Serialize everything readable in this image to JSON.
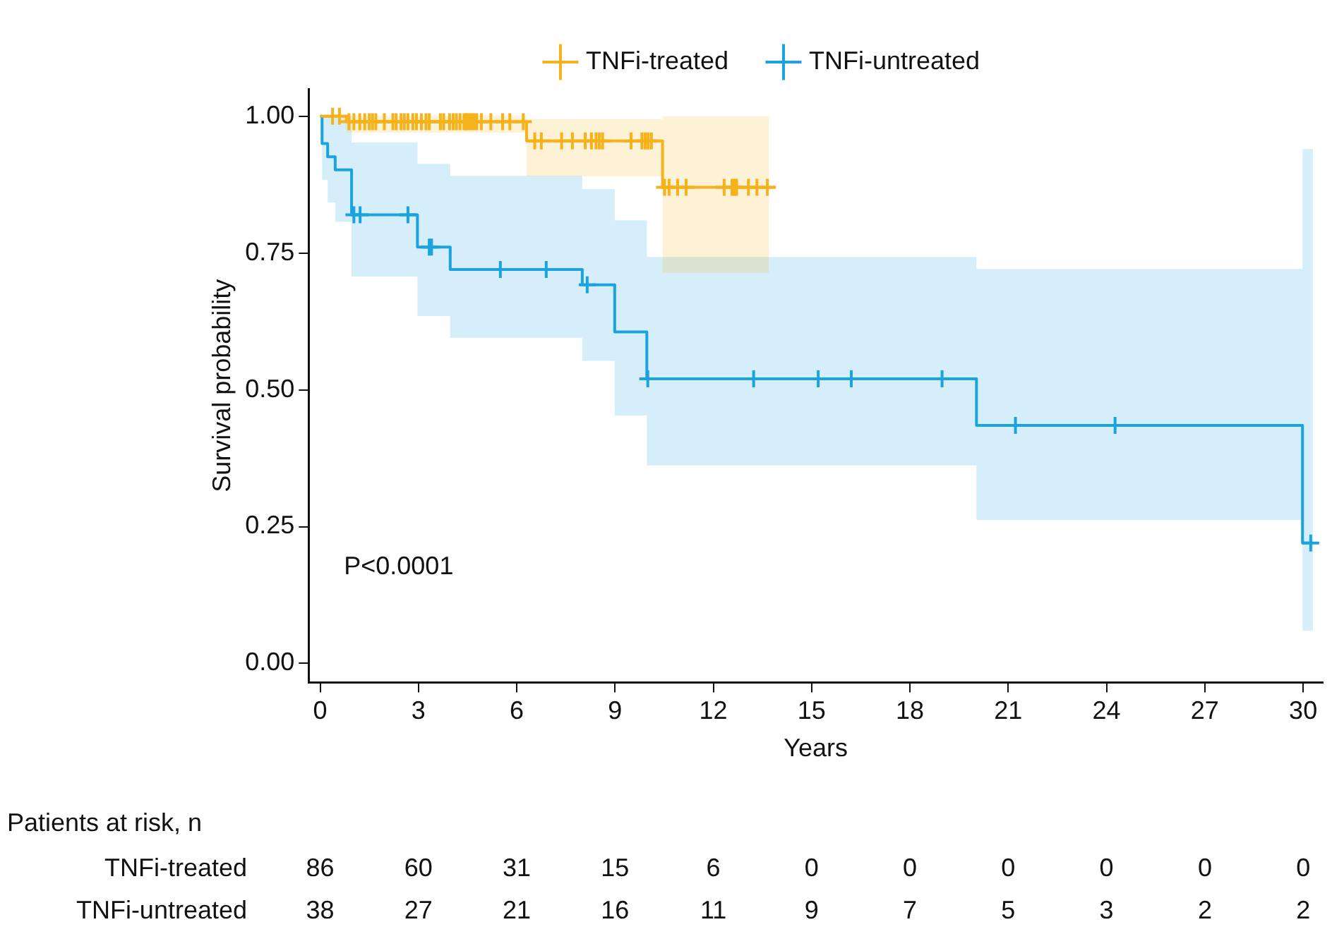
{
  "chart_data": {
    "type": "step",
    "xlabel": "Years",
    "ylabel": "Survival probability",
    "legend": "top",
    "xlim": [
      -0.35,
      30.6
    ],
    "xticks": [
      0,
      3,
      6,
      9,
      12,
      15,
      18,
      21,
      24,
      27,
      30
    ],
    "ylim": [
      -0.035,
      1.05
    ],
    "yticks": [
      {
        "value": 0,
        "label": "0.00"
      },
      {
        "value": 0.25,
        "label": "0.25"
      },
      {
        "value": 0.5,
        "label": "0.50"
      },
      {
        "value": 0.75,
        "label": "0.75"
      },
      {
        "value": 1,
        "label": "1.00"
      }
    ],
    "annotations": [
      "P<0.0001",
      "Patients at risk, n",
      "TNFi-treated",
      "86",
      "60",
      "31",
      "15",
      "6",
      "0",
      "0",
      "0",
      "0",
      "0",
      "0",
      "TNFi-untreated",
      "38",
      "27",
      "21",
      "16",
      "11",
      "9",
      "7",
      "5",
      "3",
      "2",
      "2"
    ],
    "series": [
      {
        "name": "TNFi-treated",
        "color": "#f5b21b",
        "x": [
          0,
          0.8,
          6.3,
          10.45,
          13.7,
          13.9
        ],
        "values": [
          1,
          0.99,
          0.955,
          0.87,
          0.87,
          0.87
        ],
        "lower": [
          1,
          0.97,
          0.89,
          0.714,
          0.714,
          null
        ],
        "upper": [
          1,
          1,
          0.995,
          1,
          1,
          null
        ]
      },
      {
        "name": "TNFi-untreated",
        "color": "#1ba3de",
        "x": [
          0,
          0.06,
          0.23,
          0.46,
          0.96,
          2.97,
          3.97,
          8.0,
          8.99,
          9.97,
          20.03,
          29.98,
          30.3
        ],
        "values": [
          1,
          0.95,
          0.926,
          0.902,
          0.82,
          0.761,
          0.72,
          0.692,
          0.606,
          0.52,
          0.435,
          0.22,
          0.22
        ],
        "lower": [
          1,
          0.884,
          0.842,
          0.807,
          0.707,
          0.635,
          0.595,
          0.553,
          0.453,
          0.362,
          0.262,
          0.06,
          0.06
        ],
        "upper": [
          1,
          1,
          1,
          1,
          0.952,
          0.913,
          0.891,
          0.867,
          0.81,
          0.743,
          0.721,
          0.94,
          0.94
        ]
      },
      {
        "type": "scatter",
        "marker": "cross",
        "color": "#f5b21b",
        "x": [
          0.38,
          0.59,
          0.88,
          1.03,
          1.21,
          1.36,
          1.5,
          1.6,
          1.7,
          1.96,
          2.22,
          2.32,
          2.47,
          2.57,
          2.68,
          2.83,
          2.94,
          3.09,
          3.23,
          3.33,
          3.67,
          3.77,
          3.95,
          4.06,
          4.16,
          4.27,
          4.39,
          4.45,
          4.49,
          4.56,
          4.63,
          4.7,
          4.78,
          4.92,
          5.21,
          5.57,
          5.79,
          6.2,
          6.55,
          6.75,
          7.37,
          7.7,
          8.09,
          8.28,
          8.42,
          8.52,
          8.62,
          9.49,
          9.82,
          9.92,
          10.01,
          10.11,
          10.51,
          10.65,
          10.91,
          11.17,
          12.33,
          12.57,
          12.64,
          12.71,
          13.07,
          13.33,
          13.65
        ],
        "values": [
          1,
          1,
          0.99,
          0.99,
          0.99,
          0.99,
          0.99,
          0.99,
          0.99,
          0.99,
          0.99,
          0.99,
          0.99,
          0.99,
          0.99,
          0.99,
          0.99,
          0.99,
          0.99,
          0.99,
          0.99,
          0.99,
          0.99,
          0.99,
          0.99,
          0.99,
          0.99,
          0.99,
          0.99,
          0.99,
          0.99,
          0.99,
          0.99,
          0.99,
          0.99,
          0.99,
          0.99,
          0.99,
          0.955,
          0.955,
          0.955,
          0.955,
          0.955,
          0.955,
          0.955,
          0.955,
          0.955,
          0.955,
          0.955,
          0.955,
          0.955,
          0.955,
          0.87,
          0.87,
          0.87,
          0.87,
          0.87,
          0.87,
          0.87,
          0.87,
          0.87,
          0.87,
          0.87
        ]
      },
      {
        "type": "scatter",
        "marker": "cross",
        "color": "#1ba3de",
        "x": [
          1.03,
          1.22,
          2.68,
          3.33,
          3.4,
          5.5,
          6.9,
          8.15,
          10.0,
          13.23,
          15.2,
          16.21,
          18.98,
          21.22,
          24.26,
          30.23
        ],
        "values": [
          0.82,
          0.82,
          0.82,
          0.761,
          0.761,
          0.72,
          0.72,
          0.692,
          0.52,
          0.52,
          0.52,
          0.52,
          0.52,
          0.435,
          0.435,
          0.22
        ]
      }
    ]
  }
}
